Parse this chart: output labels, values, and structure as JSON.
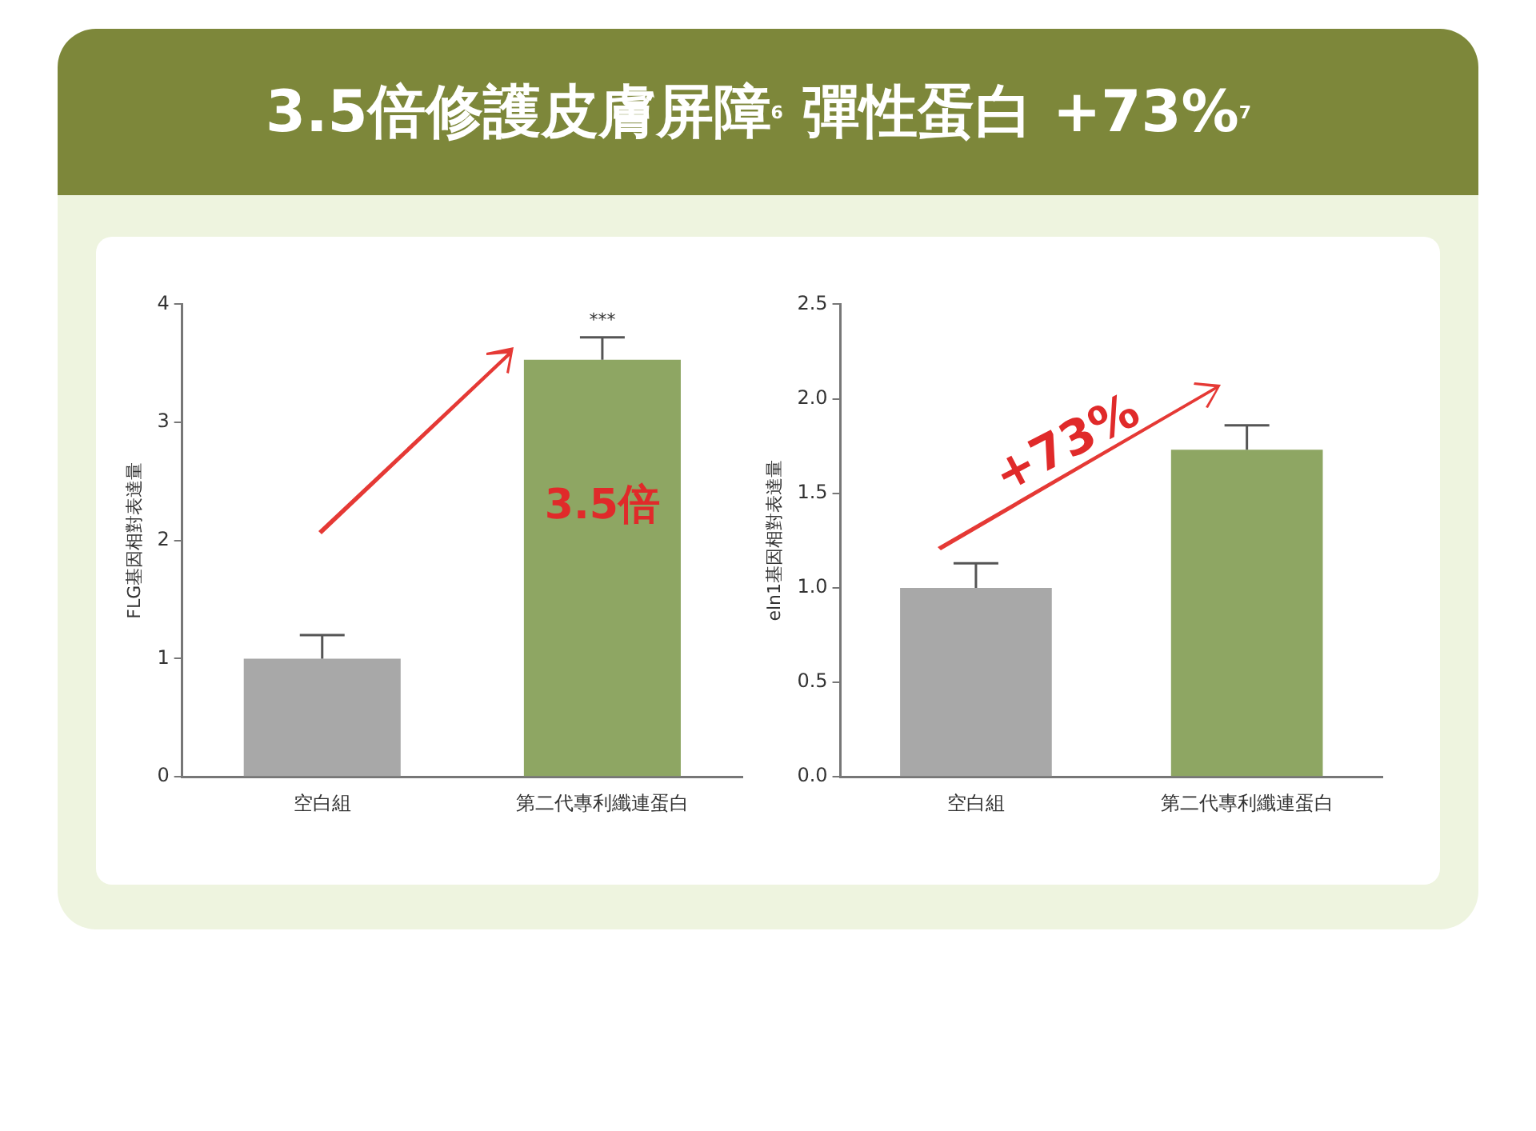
{
  "chart_data": [
    {
      "type": "bar",
      "title": "3.5倍修護皮膚屏障$^{6}$彈性蛋白 +73%$^{7}$",
      "ylabel": "FLG基因相對表達量",
      "categories": [
        "空白組",
        "第二代專利纖連蛋白"
      ],
      "values": [
        1.0,
        3.53
      ],
      "colors": [
        "#a8a8a8",
        "#8ea663"
      ],
      "errors": [
        [
          1.0,
          1.2
        ],
        [
          3.53,
          3.72
        ]
      ],
      "ylim": [
        0,
        4
      ],
      "yticks": [
        0,
        1,
        2,
        3,
        4
      ],
      "grid": false,
      "legend": false,
      "annotations": [
        "***",
        "3.5倍"
      ]
    },
    {
      "type": "bar",
      "ylabel": "eln1基因相對表達量",
      "categories": [
        "空白組",
        "第二代專利纖連蛋白"
      ],
      "values": [
        1.0,
        1.73
      ],
      "colors": [
        "#a8a8a8",
        "#8ea663"
      ],
      "errors": [
        [
          1.0,
          1.13
        ],
        [
          1.73,
          1.86
        ]
      ],
      "ylim": [
        0,
        2.5
      ],
      "yticks": [
        {
          "value": 0,
          "label": "0.0"
        },
        {
          "value": 0.5,
          "label": "0.5"
        },
        {
          "value": 1,
          "label": "1.0"
        },
        {
          "value": 1.5,
          "label": "1.5"
        },
        {
          "value": 2,
          "label": "2.0"
        },
        {
          "value": 2.5,
          "label": "2.5"
        }
      ],
      "grid": false,
      "legend": false,
      "annotations": [
        "+73%"
      ]
    }
  ]
}
